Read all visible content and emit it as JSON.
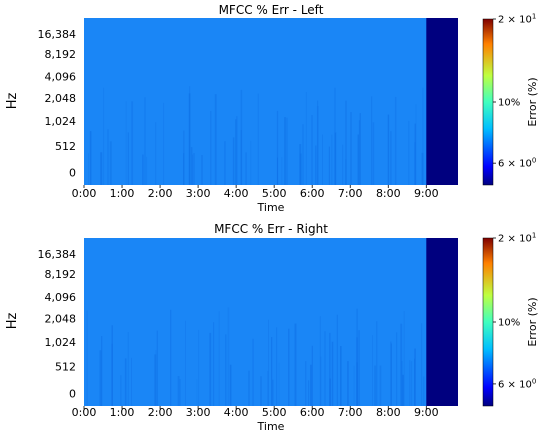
{
  "chart_data": [
    {
      "type": "heatmap",
      "title": "MFCC % Err - Left",
      "xlabel": "Time",
      "ylabel": "Hz",
      "x_ticks": [
        "0:00",
        "1:00",
        "2:00",
        "3:00",
        "4:00",
        "5:00",
        "6:00",
        "7:00",
        "8:00",
        "9:00"
      ],
      "y_ticks": [
        "0",
        "512",
        "1,024",
        "2,048",
        "4,096",
        "8,192",
        "16,384"
      ],
      "xlim": [
        "0:00",
        "9:50"
      ],
      "fill_value_pct": 5.3,
      "padding_from": "9:00",
      "padding_value_pct": 5.0,
      "colormap": "jet",
      "colorbar": {
        "label": "Error (%)",
        "scale": "log",
        "range": [
          5,
          20
        ],
        "ticks": [
          {
            "value": 20,
            "base": "2 × 10",
            "exp": "1"
          },
          {
            "value": 10,
            "label": "10%"
          },
          {
            "value": 6,
            "base": "6 × 10",
            "exp": "0"
          }
        ]
      }
    },
    {
      "type": "heatmap",
      "title": "MFCC % Err - Right",
      "xlabel": "Time",
      "ylabel": "Hz",
      "x_ticks": [
        "0:00",
        "1:00",
        "2:00",
        "3:00",
        "4:00",
        "5:00",
        "6:00",
        "7:00",
        "8:00",
        "9:00"
      ],
      "y_ticks": [
        "0",
        "512",
        "1,024",
        "2,048",
        "4,096",
        "8,192",
        "16,384"
      ],
      "xlim": [
        "0:00",
        "9:50"
      ],
      "fill_value_pct": 5.3,
      "padding_from": "9:00",
      "padding_value_pct": 5.0,
      "colormap": "jet",
      "colorbar": {
        "label": "Error (%)",
        "scale": "log",
        "range": [
          5,
          20
        ],
        "ticks": [
          {
            "value": 20,
            "base": "2 × 10",
            "exp": "1"
          },
          {
            "value": 10,
            "label": "10%"
          },
          {
            "value": 6,
            "base": "6 × 10",
            "exp": "0"
          }
        ]
      }
    }
  ],
  "colors": {
    "fill": "#1a86f6",
    "streak": "#0e6fe6",
    "padding": "#00007f"
  }
}
